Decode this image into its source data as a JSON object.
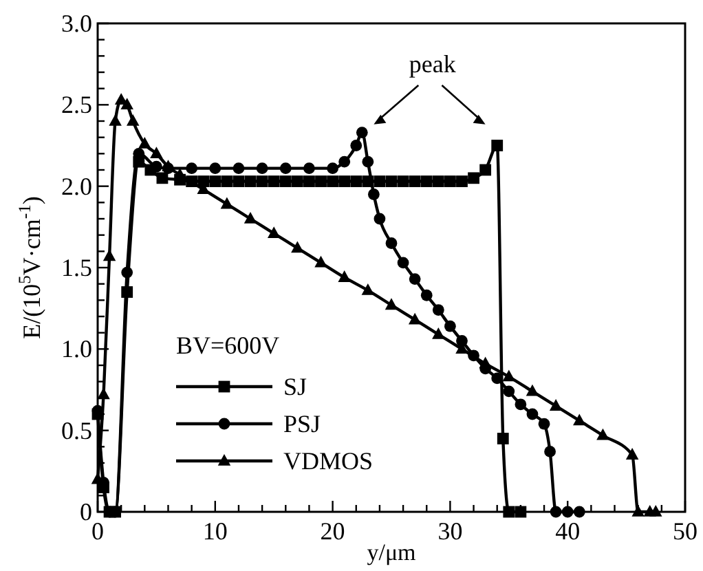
{
  "chart_data": {
    "type": "line",
    "xlabel": "y/μm",
    "ylabel": "E/(10$^{5}$V·cm$^{-1}$)",
    "legend_title": "BV=600V",
    "legend": "bottom left",
    "annotations": [
      "peak"
    ],
    "xlim": [
      0,
      50
    ],
    "ylim": [
      0,
      3.0
    ],
    "xticks": [
      0,
      {
        "value": 2,
        "label": null
      },
      {
        "value": 4,
        "label": null
      },
      {
        "value": 6,
        "label": null
      },
      {
        "value": 8,
        "label": null
      },
      10,
      {
        "value": 12,
        "label": null
      },
      {
        "value": 14,
        "label": null
      },
      {
        "value": 16,
        "label": null
      },
      {
        "value": 18,
        "label": null
      },
      20,
      {
        "value": 22,
        "label": null
      },
      {
        "value": 24,
        "label": null
      },
      {
        "value": 26,
        "label": null
      },
      {
        "value": 28,
        "label": null
      },
      30,
      {
        "value": 32,
        "label": null
      },
      {
        "value": 34,
        "label": null
      },
      {
        "value": 36,
        "label": null
      },
      {
        "value": 38,
        "label": null
      },
      40,
      {
        "value": 42,
        "label": null
      },
      {
        "value": 44,
        "label": null
      },
      {
        "value": 46,
        "label": null
      },
      {
        "value": 48,
        "label": null
      },
      50
    ],
    "yticks": [
      0,
      {
        "value": 0.1,
        "label": null
      },
      {
        "value": 0.2,
        "label": null
      },
      {
        "value": 0.3,
        "label": null
      },
      {
        "value": 0.4,
        "label": null
      },
      {
        "value": 0.5,
        "label": "0.5"
      },
      {
        "value": 0.6,
        "label": null
      },
      {
        "value": 0.7,
        "label": null
      },
      {
        "value": 0.8,
        "label": null
      },
      {
        "value": 0.9,
        "label": null
      },
      {
        "value": 1.0,
        "label": "1.0"
      },
      {
        "value": 1.1,
        "label": null
      },
      {
        "value": 1.2,
        "label": null
      },
      {
        "value": 1.3,
        "label": null
      },
      {
        "value": 1.4,
        "label": null
      },
      {
        "value": 1.5,
        "label": "1.5"
      },
      {
        "value": 1.6,
        "label": null
      },
      {
        "value": 1.7,
        "label": null
      },
      {
        "value": 1.8,
        "label": null
      },
      {
        "value": 1.9,
        "label": null
      },
      {
        "value": 2.0,
        "label": "2.0"
      },
      {
        "value": 2.1,
        "label": null
      },
      {
        "value": 2.2,
        "label": null
      },
      {
        "value": 2.3,
        "label": null
      },
      {
        "value": 2.4,
        "label": null
      },
      {
        "value": 2.5,
        "label": "2.5"
      },
      {
        "value": 2.6,
        "label": null
      },
      {
        "value": 2.7,
        "label": null
      },
      {
        "value": 2.8,
        "label": null
      },
      {
        "value": 2.9,
        "label": null
      },
      {
        "value": 3.0,
        "label": "3.0"
      }
    ],
    "grid": false,
    "line_style": "solid",
    "series": [
      {
        "name": "SJ",
        "color": "#000000",
        "marker": "square",
        "x": [
          0,
          0.5,
          1,
          1.5,
          2.5,
          3.5,
          4.5,
          5.5,
          7,
          8,
          9,
          10,
          11,
          12,
          13,
          14,
          15,
          16,
          17,
          18,
          19,
          20,
          21,
          22,
          23,
          24,
          25,
          26,
          27,
          28,
          29,
          30,
          31,
          32,
          33,
          34,
          34.5,
          35,
          36
        ],
        "values": [
          0.6,
          0.15,
          0,
          0,
          1.35,
          2.15,
          2.1,
          2.05,
          2.04,
          2.03,
          2.03,
          2.03,
          2.03,
          2.03,
          2.03,
          2.03,
          2.03,
          2.03,
          2.03,
          2.03,
          2.03,
          2.03,
          2.03,
          2.03,
          2.03,
          2.03,
          2.03,
          2.03,
          2.03,
          2.03,
          2.03,
          2.03,
          2.03,
          2.05,
          2.1,
          2.25,
          0.45,
          0,
          0
        ]
      },
      {
        "name": "PSJ",
        "color": "#000000",
        "marker": "circle",
        "x": [
          0,
          0.5,
          1,
          1.5,
          2.5,
          3.5,
          5,
          6,
          8,
          10,
          12,
          14,
          16,
          18,
          20,
          21,
          22,
          22.5,
          23,
          23.5,
          24,
          25,
          26,
          27,
          28,
          29,
          30,
          31,
          32,
          33,
          34,
          35,
          36,
          37,
          38,
          38.5,
          39,
          40,
          41
        ],
        "values": [
          0.62,
          0.18,
          0,
          0,
          1.47,
          2.2,
          2.12,
          2.11,
          2.11,
          2.11,
          2.11,
          2.11,
          2.11,
          2.11,
          2.11,
          2.15,
          2.25,
          2.33,
          2.15,
          1.95,
          1.8,
          1.65,
          1.53,
          1.43,
          1.33,
          1.24,
          1.14,
          1.05,
          0.96,
          0.88,
          0.82,
          0.74,
          0.66,
          0.6,
          0.54,
          0.37,
          0,
          0,
          0
        ]
      },
      {
        "name": "VDMOS",
        "color": "#000000",
        "marker": "triangle",
        "x": [
          0,
          0.5,
          1,
          1.5,
          2,
          2.5,
          3,
          4,
          5,
          6,
          7,
          9,
          11,
          13,
          15,
          17,
          19,
          21,
          23,
          25,
          27,
          29,
          31,
          33,
          35,
          37,
          39,
          41,
          43,
          45.5,
          46,
          47,
          47.5
        ],
        "values": [
          0.2,
          0.72,
          1.57,
          2.4,
          2.53,
          2.5,
          2.4,
          2.26,
          2.2,
          2.12,
          2.07,
          1.98,
          1.89,
          1.8,
          1.71,
          1.62,
          1.53,
          1.44,
          1.36,
          1.27,
          1.18,
          1.09,
          1.0,
          0.91,
          0.83,
          0.74,
          0.65,
          0.56,
          0.47,
          0.35,
          0,
          0,
          0
        ]
      }
    ]
  }
}
